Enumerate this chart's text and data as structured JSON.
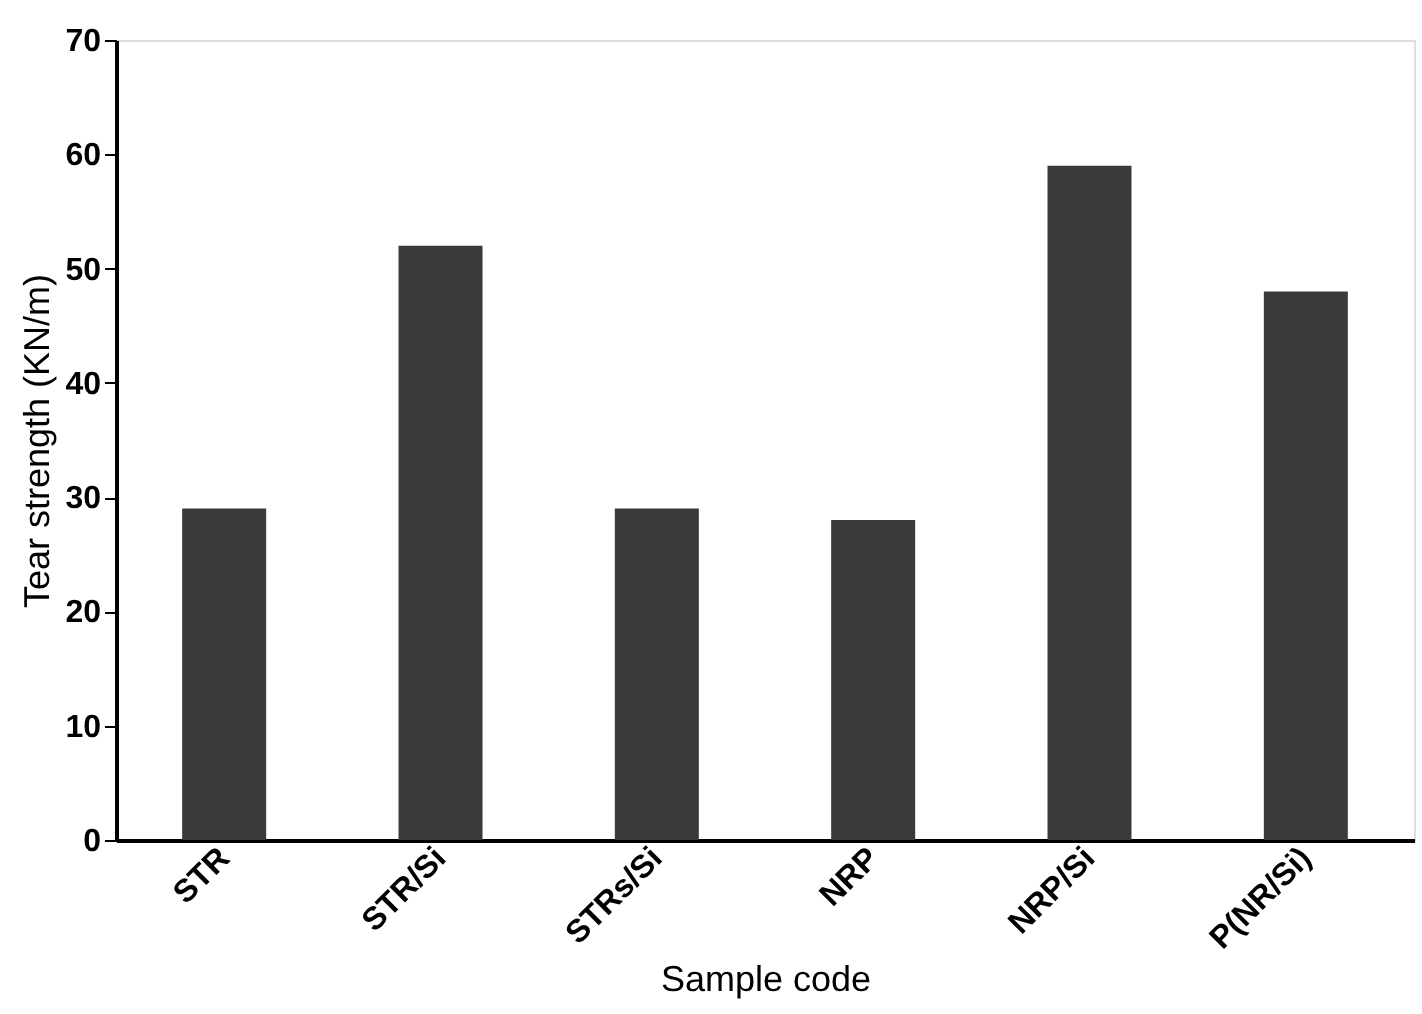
{
  "chart_data": {
    "type": "bar",
    "xlabel": "Sample code",
    "ylabel": "Tear strength (KN/m)",
    "categories": [
      "STR",
      "STR/Si",
      "STRs/Si",
      "NRP",
      "NRP/Si",
      "P(NR/Si)"
    ],
    "values": [
      29,
      52,
      29,
      28,
      59,
      48
    ],
    "color": "#3a3a3a",
    "ylim": [
      0,
      70
    ],
    "yticks": [
      0,
      10,
      20,
      30,
      40,
      50,
      60,
      70
    ],
    "grid": false
  }
}
